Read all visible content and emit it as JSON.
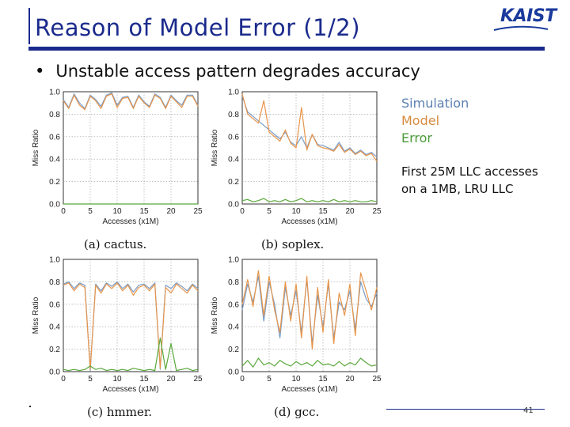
{
  "slide": {
    "title": "Reason of Model Error (1/2)",
    "bullet": "Unstable access pattern degrades accuracy",
    "logo_text": "KAIST",
    "legend": {
      "simulation": "Simulation",
      "model": "Model",
      "error": "Error"
    },
    "note_line1": "First 25M LLC accesses",
    "note_line2": "on a 1MB, LRU LLC",
    "page_number": "41"
  },
  "colors": {
    "title": "#1a2a8c",
    "simulation": "#7a9cc6",
    "model": "#e8954a",
    "error": "#5aa83c"
  },
  "chart_data": [
    {
      "type": "line",
      "caption": "(a) cactus.",
      "xlabel": "Accesses (x1M)",
      "ylabel": "Miss Ratio",
      "xlim": [
        0,
        25
      ],
      "ylim": [
        0,
        1.0
      ],
      "xticks": [
        "0",
        "5",
        "10",
        "15",
        "20",
        "25"
      ],
      "yticks": [
        "0.0",
        "0.2",
        "0.4",
        "0.6",
        "0.8",
        "1.0"
      ],
      "grid": true,
      "series": [
        {
          "name": "Simulation",
          "x": [
            0,
            1,
            2,
            3,
            4,
            5,
            6,
            7,
            8,
            9,
            10,
            11,
            12,
            13,
            14,
            15,
            16,
            17,
            18,
            19,
            20,
            21,
            22,
            23,
            24,
            25
          ],
          "values": [
            0.93,
            0.86,
            0.98,
            0.9,
            0.85,
            0.97,
            0.93,
            0.87,
            0.97,
            0.99,
            0.88,
            0.95,
            0.96,
            0.86,
            0.97,
            0.91,
            0.87,
            0.98,
            0.95,
            0.86,
            0.97,
            0.92,
            0.88,
            0.97,
            0.97,
            0.88
          ]
        },
        {
          "name": "Model",
          "x": [
            0,
            1,
            2,
            3,
            4,
            5,
            6,
            7,
            8,
            9,
            10,
            11,
            12,
            13,
            14,
            15,
            16,
            17,
            18,
            19,
            20,
            21,
            22,
            23,
            24,
            25
          ],
          "values": [
            0.92,
            0.85,
            0.97,
            0.88,
            0.84,
            0.96,
            0.92,
            0.85,
            0.96,
            0.98,
            0.86,
            0.94,
            0.95,
            0.85,
            0.96,
            0.9,
            0.86,
            0.97,
            0.94,
            0.85,
            0.96,
            0.91,
            0.86,
            0.96,
            0.96,
            0.87
          ]
        },
        {
          "name": "Error",
          "x": [
            0,
            25
          ],
          "values": [
            0.0,
            0.0
          ]
        }
      ]
    },
    {
      "type": "line",
      "caption": "(b) soplex.",
      "xlabel": "Accesses (x1M)",
      "ylabel": "Miss Ratio",
      "xlim": [
        0,
        25
      ],
      "ylim": [
        0,
        1.0
      ],
      "xticks": [
        "0",
        "5",
        "10",
        "15",
        "20",
        "25"
      ],
      "yticks": [
        "0.0",
        "0.2",
        "0.4",
        "0.6",
        "0.8",
        "1.0"
      ],
      "grid": true,
      "series": [
        {
          "name": "Simulation",
          "x": [
            0,
            1,
            2,
            3,
            4,
            5,
            6,
            7,
            8,
            9,
            10,
            11,
            12,
            13,
            14,
            15,
            16,
            17,
            18,
            19,
            20,
            21,
            22,
            23,
            24,
            25
          ],
          "values": [
            0.96,
            0.82,
            0.78,
            0.74,
            0.7,
            0.66,
            0.62,
            0.58,
            0.64,
            0.55,
            0.52,
            0.6,
            0.5,
            0.62,
            0.53,
            0.52,
            0.5,
            0.48,
            0.55,
            0.47,
            0.5,
            0.45,
            0.48,
            0.44,
            0.46,
            0.42
          ]
        },
        {
          "name": "Model",
          "x": [
            0,
            1,
            2,
            3,
            4,
            5,
            6,
            7,
            8,
            9,
            10,
            11,
            12,
            13,
            14,
            15,
            16,
            17,
            18,
            19,
            20,
            21,
            22,
            23,
            24,
            25
          ],
          "values": [
            0.98,
            0.8,
            0.76,
            0.72,
            0.92,
            0.64,
            0.6,
            0.56,
            0.66,
            0.54,
            0.5,
            0.86,
            0.48,
            0.62,
            0.52,
            0.5,
            0.49,
            0.47,
            0.53,
            0.46,
            0.49,
            0.44,
            0.47,
            0.43,
            0.45,
            0.38
          ]
        },
        {
          "name": "Error",
          "x": [
            0,
            1,
            2,
            3,
            4,
            5,
            6,
            7,
            8,
            9,
            10,
            11,
            12,
            13,
            14,
            15,
            16,
            17,
            18,
            19,
            20,
            21,
            22,
            23,
            24,
            25
          ],
          "values": [
            0.03,
            0.04,
            0.02,
            0.03,
            0.05,
            0.02,
            0.03,
            0.02,
            0.04,
            0.02,
            0.03,
            0.05,
            0.02,
            0.03,
            0.02,
            0.03,
            0.02,
            0.04,
            0.02,
            0.03,
            0.02,
            0.03,
            0.02,
            0.02,
            0.03,
            0.02
          ]
        }
      ]
    },
    {
      "type": "line",
      "caption": "(c) hmmer.",
      "xlabel": "Accesses (x1M)",
      "ylabel": "Miss Ratio",
      "xlim": [
        0,
        25
      ],
      "ylim": [
        0,
        1.0
      ],
      "xticks": [
        "0",
        "5",
        "10",
        "15",
        "20",
        "25"
      ],
      "yticks": [
        "0.0",
        "0.2",
        "0.4",
        "0.6",
        "0.8",
        "1.0"
      ],
      "grid": true,
      "series": [
        {
          "name": "Simulation",
          "x": [
            0,
            1,
            2,
            3,
            4,
            5,
            6,
            7,
            8,
            9,
            10,
            11,
            12,
            13,
            14,
            15,
            16,
            17,
            18,
            19,
            20,
            21,
            22,
            23,
            24,
            25
          ],
          "values": [
            0.78,
            0.8,
            0.74,
            0.79,
            0.77,
            0.01,
            0.78,
            0.72,
            0.79,
            0.76,
            0.8,
            0.74,
            0.78,
            0.71,
            0.77,
            0.78,
            0.74,
            0.79,
            0.02,
            0.77,
            0.74,
            0.79,
            0.76,
            0.72,
            0.78,
            0.74
          ]
        },
        {
          "name": "Model",
          "x": [
            0,
            1,
            2,
            3,
            4,
            5,
            6,
            7,
            8,
            9,
            10,
            11,
            12,
            13,
            14,
            15,
            16,
            17,
            18,
            19,
            20,
            21,
            22,
            23,
            24,
            25
          ],
          "values": [
            0.77,
            0.79,
            0.72,
            0.78,
            0.75,
            0.02,
            0.77,
            0.7,
            0.78,
            0.74,
            0.79,
            0.72,
            0.77,
            0.68,
            0.75,
            0.77,
            0.72,
            0.78,
            0.03,
            0.75,
            0.7,
            0.78,
            0.74,
            0.7,
            0.77,
            0.72
          ]
        },
        {
          "name": "Error",
          "x": [
            0,
            1,
            2,
            3,
            4,
            5,
            6,
            7,
            8,
            9,
            10,
            11,
            12,
            13,
            14,
            15,
            16,
            17,
            18,
            19,
            20,
            21,
            22,
            23,
            24,
            25
          ],
          "values": [
            0.02,
            0.01,
            0.02,
            0.01,
            0.02,
            0.05,
            0.02,
            0.03,
            0.01,
            0.02,
            0.01,
            0.02,
            0.01,
            0.03,
            0.02,
            0.01,
            0.02,
            0.01,
            0.3,
            0.02,
            0.25,
            0.01,
            0.02,
            0.03,
            0.01,
            0.02
          ]
        }
      ]
    },
    {
      "type": "line",
      "caption": "(d) gcc.",
      "xlabel": "Accesses (x1M)",
      "ylabel": "Miss Ratio",
      "xlim": [
        0,
        25
      ],
      "ylim": [
        0,
        1.0
      ],
      "xticks": [
        "0",
        "5",
        "10",
        "15",
        "20",
        "25"
      ],
      "yticks": [
        "0.0",
        "0.2",
        "0.4",
        "0.6",
        "0.8",
        "1.0"
      ],
      "grid": true,
      "series": [
        {
          "name": "Simulation",
          "x": [
            0,
            1,
            2,
            3,
            4,
            5,
            6,
            7,
            8,
            9,
            10,
            11,
            12,
            13,
            14,
            15,
            16,
            17,
            18,
            19,
            20,
            21,
            22,
            23,
            24,
            25
          ],
          "values": [
            0.55,
            0.78,
            0.62,
            0.85,
            0.45,
            0.8,
            0.6,
            0.3,
            0.75,
            0.5,
            0.72,
            0.35,
            0.82,
            0.25,
            0.68,
            0.4,
            0.78,
            0.3,
            0.62,
            0.55,
            0.72,
            0.38,
            0.8,
            0.65,
            0.58,
            0.7
          ]
        },
        {
          "name": "Model",
          "x": [
            0,
            1,
            2,
            3,
            4,
            5,
            6,
            7,
            8,
            9,
            10,
            11,
            12,
            13,
            14,
            15,
            16,
            17,
            18,
            19,
            20,
            21,
            22,
            23,
            24,
            25
          ],
          "values": [
            0.6,
            0.82,
            0.58,
            0.9,
            0.5,
            0.85,
            0.55,
            0.35,
            0.8,
            0.45,
            0.78,
            0.3,
            0.85,
            0.2,
            0.75,
            0.35,
            0.82,
            0.25,
            0.7,
            0.5,
            0.78,
            0.32,
            0.88,
            0.72,
            0.55,
            0.75
          ]
        },
        {
          "name": "Error",
          "x": [
            0,
            1,
            2,
            3,
            4,
            5,
            6,
            7,
            8,
            9,
            10,
            11,
            12,
            13,
            14,
            15,
            16,
            17,
            18,
            19,
            20,
            21,
            22,
            23,
            24,
            25
          ],
          "values": [
            0.05,
            0.1,
            0.04,
            0.12,
            0.06,
            0.08,
            0.05,
            0.1,
            0.07,
            0.05,
            0.09,
            0.06,
            0.08,
            0.05,
            0.1,
            0.06,
            0.07,
            0.05,
            0.09,
            0.05,
            0.08,
            0.06,
            0.12,
            0.08,
            0.05,
            0.06
          ]
        }
      ]
    }
  ]
}
